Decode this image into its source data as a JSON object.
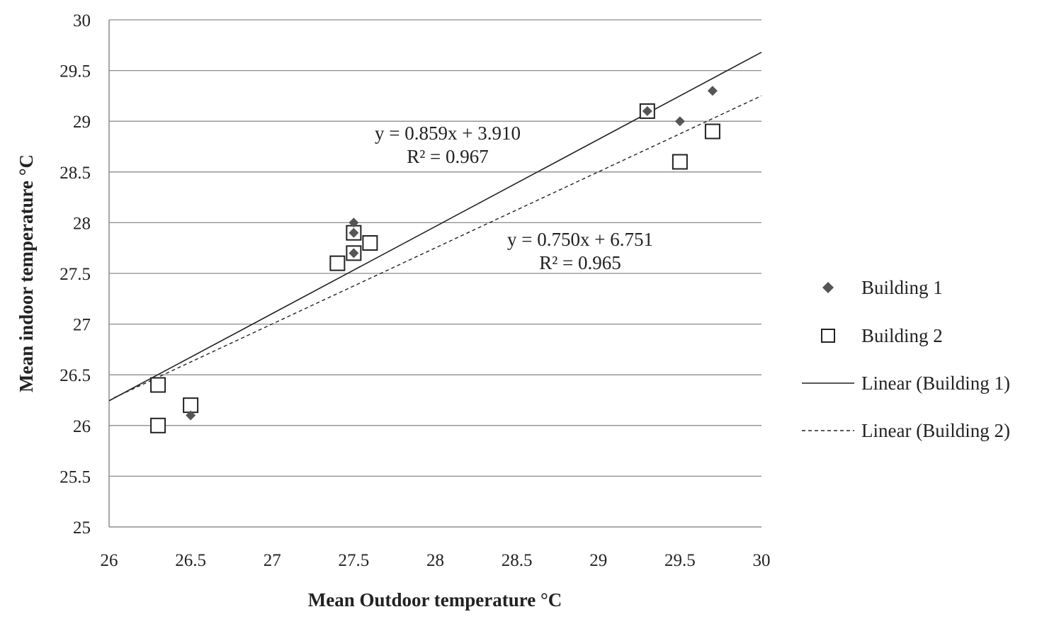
{
  "chart_data": {
    "type": "scatter",
    "xlabel": "Mean Outdoor temperature °C",
    "ylabel": "Mean indoor temperature °C",
    "xlim": [
      26,
      30
    ],
    "ylim": [
      25,
      30
    ],
    "x_ticks": [
      26,
      26.5,
      27,
      27.5,
      28,
      28.5,
      29,
      29.5,
      30
    ],
    "x_tick_labels": [
      "26",
      "26.5",
      "27",
      "27.5",
      "28",
      "28.5",
      "29",
      "29.5",
      "30"
    ],
    "y_ticks": [
      25,
      25.5,
      26,
      26.5,
      27,
      27.5,
      28,
      28.5,
      29,
      29.5,
      30
    ],
    "y_tick_labels": [
      "25",
      "25.5",
      "26",
      "26.5",
      "27",
      "27.5",
      "28",
      "28.5",
      "29",
      "29.5",
      "30"
    ],
    "grid": "horizontal",
    "legend_position": "right",
    "series": [
      {
        "name": "Building 1",
        "marker": "diamond",
        "color": "#555555",
        "points": [
          {
            "x": 26.5,
            "y": 26.1
          },
          {
            "x": 27.5,
            "y": 28.0
          },
          {
            "x": 27.5,
            "y": 27.9
          },
          {
            "x": 27.5,
            "y": 27.7
          },
          {
            "x": 29.3,
            "y": 29.1
          },
          {
            "x": 29.5,
            "y": 29.0
          },
          {
            "x": 29.7,
            "y": 29.3
          }
        ]
      },
      {
        "name": "Building 2",
        "marker": "square-open",
        "color": "#222222",
        "points": [
          {
            "x": 26.3,
            "y": 26.4
          },
          {
            "x": 26.3,
            "y": 26.0
          },
          {
            "x": 26.5,
            "y": 26.2
          },
          {
            "x": 27.4,
            "y": 27.6
          },
          {
            "x": 27.5,
            "y": 27.9
          },
          {
            "x": 27.5,
            "y": 27.7
          },
          {
            "x": 27.6,
            "y": 27.8
          },
          {
            "x": 29.3,
            "y": 29.1
          },
          {
            "x": 29.5,
            "y": 28.6
          },
          {
            "x": 29.7,
            "y": 28.9
          }
        ]
      }
    ],
    "trendlines": [
      {
        "name": "Linear (Building 1)",
        "style": "solid",
        "slope": 0.859,
        "intercept": 3.91,
        "x_range": [
          26,
          30
        ],
        "equation": "y = 0.859x + 3.910",
        "r2": "R² = 0.967"
      },
      {
        "name": "Linear (Building 2)",
        "style": "dashed",
        "slope": 0.75,
        "intercept": 6.751,
        "x_range": [
          26.03,
          30
        ],
        "equation": "y = 0.750x + 6.751",
        "r2": "R² = 0.965"
      }
    ]
  }
}
